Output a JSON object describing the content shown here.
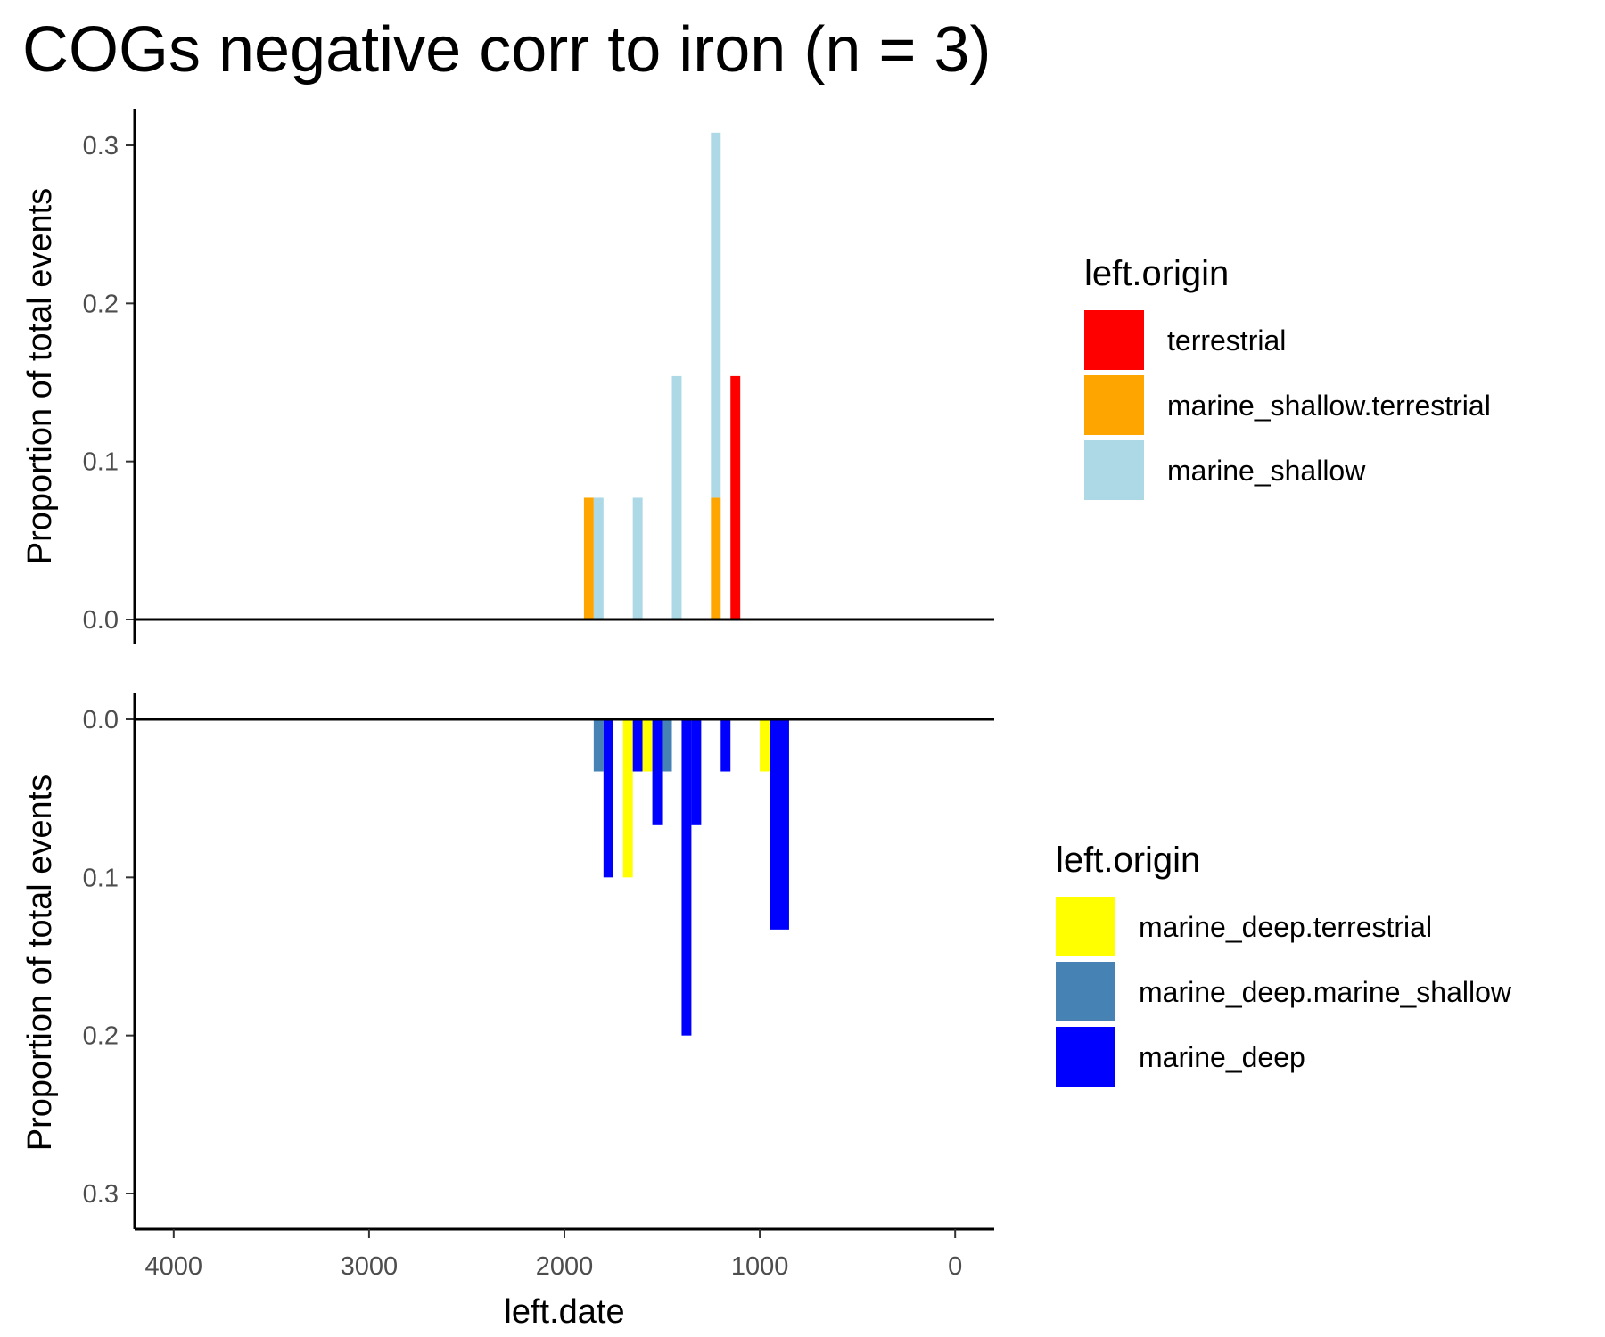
{
  "chart_data": {
    "type": "bar",
    "title": "COGs negative corr to iron (n = 3)",
    "xlabel": "left.date",
    "x_reversed": true,
    "xlim": [
      4200,
      -200
    ],
    "x_ticks": [
      "4000",
      "3000",
      "2000",
      "1000",
      "0"
    ],
    "grid": false,
    "bar_width": 50,
    "panels": [
      {
        "ylabel": "Proportion of total events",
        "ylim": [
          0,
          0.32
        ],
        "y_reversed": false,
        "y_ticks": [
          "0.0",
          "0.1",
          "0.2",
          "0.3"
        ],
        "legend_title": "left.origin",
        "legend_position": "right",
        "legend": [
          {
            "name": "terrestrial",
            "color": "#ff0000"
          },
          {
            "name": "marine_shallow.terrestrial",
            "color": "#ffa500"
          },
          {
            "name": "marine_shallow",
            "color": "#add8e6"
          }
        ],
        "bars": [
          {
            "x": 1875,
            "y": 0.077,
            "series": "marine_shallow.terrestrial"
          },
          {
            "x": 1825,
            "y": 0.077,
            "series": "marine_shallow"
          },
          {
            "x": 1625,
            "y": 0.077,
            "series": "marine_shallow"
          },
          {
            "x": 1425,
            "y": 0.154,
            "series": "marine_shallow"
          },
          {
            "x": 1225,
            "y": 0.077,
            "series": "marine_shallow.terrestrial"
          },
          {
            "x": 1225,
            "y": 0.231,
            "series": "marine_shallow",
            "stack_base": 0.077
          },
          {
            "x": 1125,
            "y": 0.154,
            "series": "terrestrial"
          }
        ]
      },
      {
        "ylabel": "Proportion of total events",
        "ylim": [
          0,
          0.32
        ],
        "y_reversed": true,
        "y_ticks": [
          "0.0",
          "0.1",
          "0.2",
          "0.3"
        ],
        "legend_title": "left.origin",
        "legend_position": "right",
        "legend": [
          {
            "name": "marine_deep.terrestrial",
            "color": "#ffff00"
          },
          {
            "name": "marine_deep.marine_shallow",
            "color": "#4682b4"
          },
          {
            "name": "marine_deep",
            "color": "#0000ff"
          }
        ],
        "bars": [
          {
            "x": 1825,
            "y": 0.033,
            "series": "marine_deep.marine_shallow"
          },
          {
            "x": 1775,
            "y": 0.1,
            "series": "marine_deep"
          },
          {
            "x": 1675,
            "y": 0.1,
            "series": "marine_deep.terrestrial"
          },
          {
            "x": 1625,
            "y": 0.033,
            "series": "marine_deep"
          },
          {
            "x": 1575,
            "y": 0.033,
            "series": "marine_deep.terrestrial"
          },
          {
            "x": 1525,
            "y": 0.067,
            "series": "marine_deep"
          },
          {
            "x": 1475,
            "y": 0.033,
            "series": "marine_deep.marine_shallow"
          },
          {
            "x": 1375,
            "y": 0.2,
            "series": "marine_deep"
          },
          {
            "x": 1325,
            "y": 0.067,
            "series": "marine_deep"
          },
          {
            "x": 1175,
            "y": 0.033,
            "series": "marine_deep"
          },
          {
            "x": 975,
            "y": 0.033,
            "series": "marine_deep.terrestrial"
          },
          {
            "x": 925,
            "y": 0.133,
            "series": "marine_deep"
          },
          {
            "x": 875,
            "y": 0.133,
            "series": "marine_deep"
          }
        ]
      }
    ]
  }
}
